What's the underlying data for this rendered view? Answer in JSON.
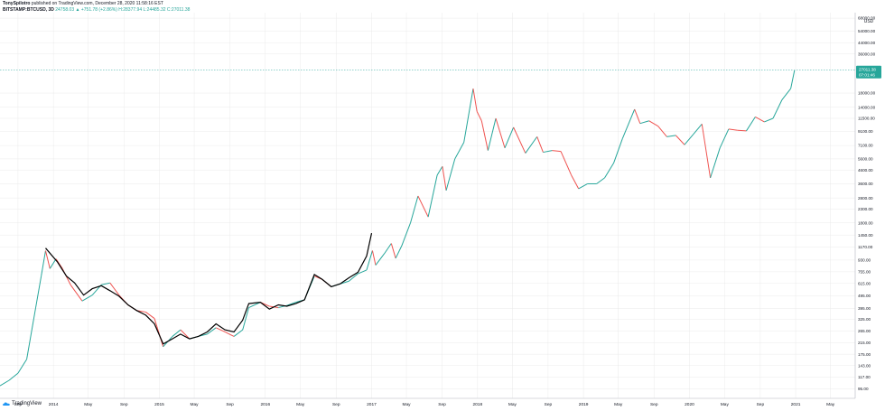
{
  "header": {
    "author": "TonySpilotro",
    "published": "published on TradingView.com, December 28, 2020 11:58:16 EST",
    "symbol": "BITSTAMP:BTCUSD, 3D",
    "ohlc": "24758.03 ▲ +751.78 (+2.86%) H:28377.94 L:24485.32 C:27011.38"
  },
  "footer": {
    "brand": "TradingView"
  },
  "colors": {
    "up": "#26a69a",
    "down": "#ef5350",
    "overlay": "#000000",
    "price_tag": "#26a69a",
    "grid": "#e6e6e6"
  },
  "chart_data": {
    "type": "line",
    "scale": "log",
    "currency": "USD",
    "y_ticks": [
      95,
      117,
      143,
      175,
      215,
      265,
      325,
      395,
      495,
      615,
      755,
      930,
      1170,
      1450,
      1800,
      2300,
      2800,
      3600,
      4600,
      5600,
      7100,
      9100,
      11500,
      14000,
      18000,
      36000,
      44000,
      54000,
      68000
    ],
    "x_ticks": [
      {
        "label": "Sep",
        "date": "2013-09-01"
      },
      {
        "label": "2014",
        "date": "2014-01-01"
      },
      {
        "label": "May",
        "date": "2014-05-01"
      },
      {
        "label": "Sep",
        "date": "2014-09-01"
      },
      {
        "label": "2015",
        "date": "2015-01-01"
      },
      {
        "label": "May",
        "date": "2015-05-01"
      },
      {
        "label": "Sep",
        "date": "2015-09-01"
      },
      {
        "label": "2016",
        "date": "2016-01-01"
      },
      {
        "label": "May",
        "date": "2016-05-01"
      },
      {
        "label": "Sep",
        "date": "2016-09-01"
      },
      {
        "label": "2017",
        "date": "2017-01-01"
      },
      {
        "label": "May",
        "date": "2017-05-01"
      },
      {
        "label": "Sep",
        "date": "2017-09-01"
      },
      {
        "label": "2018",
        "date": "2018-01-01"
      },
      {
        "label": "May",
        "date": "2018-05-01"
      },
      {
        "label": "Sep",
        "date": "2018-09-01"
      },
      {
        "label": "2019",
        "date": "2019-01-01"
      },
      {
        "label": "May",
        "date": "2019-05-01"
      },
      {
        "label": "Sep",
        "date": "2019-09-01"
      },
      {
        "label": "2020",
        "date": "2020-01-01"
      },
      {
        "label": "May",
        "date": "2020-05-01"
      },
      {
        "label": "Sep",
        "date": "2020-09-01"
      },
      {
        "label": "2021",
        "date": "2021-01-01"
      },
      {
        "label": "May",
        "date": "2021-05-01"
      }
    ],
    "last_price": {
      "value": 27011.38,
      "label": "27011.38",
      "countdown": "07:01:46"
    },
    "series": [
      {
        "points": [
          [
            "2013-07-01",
            100
          ],
          [
            "2013-08-01",
            110
          ],
          [
            "2013-09-01",
            125
          ],
          [
            "2013-10-01",
            160
          ],
          [
            "2013-11-01",
            400
          ],
          [
            "2013-11-20",
            700
          ],
          [
            "2013-12-05",
            1100
          ],
          [
            "2013-12-20",
            800
          ],
          [
            "2014-01-10",
            950
          ],
          [
            "2014-02-01",
            800
          ],
          [
            "2014-03-01",
            600
          ],
          [
            "2014-04-10",
            450
          ],
          [
            "2014-05-15",
            500
          ],
          [
            "2014-06-15",
            600
          ],
          [
            "2014-07-15",
            620
          ],
          [
            "2014-08-15",
            500
          ],
          [
            "2014-09-15",
            420
          ],
          [
            "2014-10-15",
            380
          ],
          [
            "2014-11-15",
            370
          ],
          [
            "2014-12-15",
            330
          ],
          [
            "2015-01-14",
            200
          ],
          [
            "2015-02-15",
            240
          ],
          [
            "2015-03-15",
            270
          ],
          [
            "2015-04-15",
            230
          ],
          [
            "2015-05-15",
            240
          ],
          [
            "2015-06-15",
            250
          ],
          [
            "2015-07-15",
            280
          ],
          [
            "2015-08-15",
            260
          ],
          [
            "2015-09-15",
            240
          ],
          [
            "2015-10-15",
            270
          ],
          [
            "2015-11-05",
            400
          ],
          [
            "2015-12-15",
            440
          ],
          [
            "2016-01-15",
            410
          ],
          [
            "2016-02-15",
            400
          ],
          [
            "2016-03-15",
            415
          ],
          [
            "2016-04-15",
            440
          ],
          [
            "2016-05-15",
            460
          ],
          [
            "2016-06-18",
            700
          ],
          [
            "2016-07-15",
            660
          ],
          [
            "2016-08-15",
            580
          ],
          [
            "2016-09-15",
            610
          ],
          [
            "2016-10-15",
            640
          ],
          [
            "2016-11-15",
            730
          ],
          [
            "2016-12-15",
            780
          ],
          [
            "2017-01-04",
            1100
          ],
          [
            "2017-01-15",
            850
          ],
          [
            "2017-02-15",
            1050
          ],
          [
            "2017-03-10",
            1250
          ],
          [
            "2017-03-25",
            960
          ],
          [
            "2017-04-15",
            1200
          ],
          [
            "2017-05-15",
            1800
          ],
          [
            "2017-06-10",
            2900
          ],
          [
            "2017-07-15",
            2000
          ],
          [
            "2017-08-15",
            4200
          ],
          [
            "2017-09-02",
            4900
          ],
          [
            "2017-09-15",
            3200
          ],
          [
            "2017-10-15",
            5600
          ],
          [
            "2017-11-15",
            7500
          ],
          [
            "2017-12-17",
            19500
          ],
          [
            "2017-12-30",
            13000
          ],
          [
            "2018-01-15",
            11000
          ],
          [
            "2018-02-06",
            6500
          ],
          [
            "2018-03-05",
            11500
          ],
          [
            "2018-04-05",
            6800
          ],
          [
            "2018-05-05",
            9800
          ],
          [
            "2018-06-15",
            6200
          ],
          [
            "2018-07-25",
            8300
          ],
          [
            "2018-08-15",
            6300
          ],
          [
            "2018-09-15",
            6500
          ],
          [
            "2018-10-15",
            6400
          ],
          [
            "2018-11-20",
            4200
          ],
          [
            "2018-12-15",
            3300
          ],
          [
            "2019-01-15",
            3600
          ],
          [
            "2019-02-15",
            3600
          ],
          [
            "2019-03-15",
            4000
          ],
          [
            "2019-04-15",
            5200
          ],
          [
            "2019-05-15",
            8000
          ],
          [
            "2019-06-26",
            13500
          ],
          [
            "2019-07-15",
            10500
          ],
          [
            "2019-08-15",
            11000
          ],
          [
            "2019-09-15",
            10000
          ],
          [
            "2019-10-15",
            8300
          ],
          [
            "2019-11-15",
            8500
          ],
          [
            "2019-12-15",
            7200
          ],
          [
            "2020-01-15",
            8700
          ],
          [
            "2020-02-13",
            10400
          ],
          [
            "2020-03-13",
            4000
          ],
          [
            "2020-04-15",
            6800
          ],
          [
            "2020-05-15",
            9500
          ],
          [
            "2020-06-15",
            9300
          ],
          [
            "2020-07-15",
            9200
          ],
          [
            "2020-08-15",
            11800
          ],
          [
            "2020-09-15",
            10800
          ],
          [
            "2020-10-15",
            11500
          ],
          [
            "2020-11-15",
            16000
          ],
          [
            "2020-12-15",
            19500
          ],
          [
            "2020-12-28",
            27000
          ]
        ]
      },
      {
        "points": [
          [
            "2013-12-05",
            1150
          ],
          [
            "2014-01-15",
            900
          ],
          [
            "2014-02-15",
            700
          ],
          [
            "2014-03-15",
            620
          ],
          [
            "2014-04-15",
            500
          ],
          [
            "2014-05-15",
            560
          ],
          [
            "2014-06-15",
            590
          ],
          [
            "2014-07-15",
            540
          ],
          [
            "2014-08-15",
            490
          ],
          [
            "2014-09-15",
            420
          ],
          [
            "2014-10-15",
            380
          ],
          [
            "2014-11-15",
            350
          ],
          [
            "2014-12-15",
            300
          ],
          [
            "2015-01-14",
            210
          ],
          [
            "2015-02-15",
            230
          ],
          [
            "2015-03-15",
            250
          ],
          [
            "2015-04-15",
            230
          ],
          [
            "2015-05-15",
            240
          ],
          [
            "2015-06-15",
            260
          ],
          [
            "2015-07-15",
            300
          ],
          [
            "2015-08-15",
            270
          ],
          [
            "2015-09-15",
            260
          ],
          [
            "2015-10-15",
            320
          ],
          [
            "2015-11-05",
            430
          ],
          [
            "2015-12-15",
            440
          ],
          [
            "2016-01-15",
            390
          ],
          [
            "2016-02-15",
            420
          ],
          [
            "2016-03-15",
            410
          ],
          [
            "2016-04-15",
            430
          ],
          [
            "2016-05-15",
            460
          ],
          [
            "2016-06-18",
            720
          ],
          [
            "2016-07-15",
            660
          ],
          [
            "2016-08-15",
            580
          ],
          [
            "2016-09-15",
            610
          ],
          [
            "2016-10-15",
            680
          ],
          [
            "2016-11-15",
            750
          ],
          [
            "2016-12-15",
            1000
          ],
          [
            "2017-01-01",
            1500
          ]
        ]
      }
    ]
  }
}
